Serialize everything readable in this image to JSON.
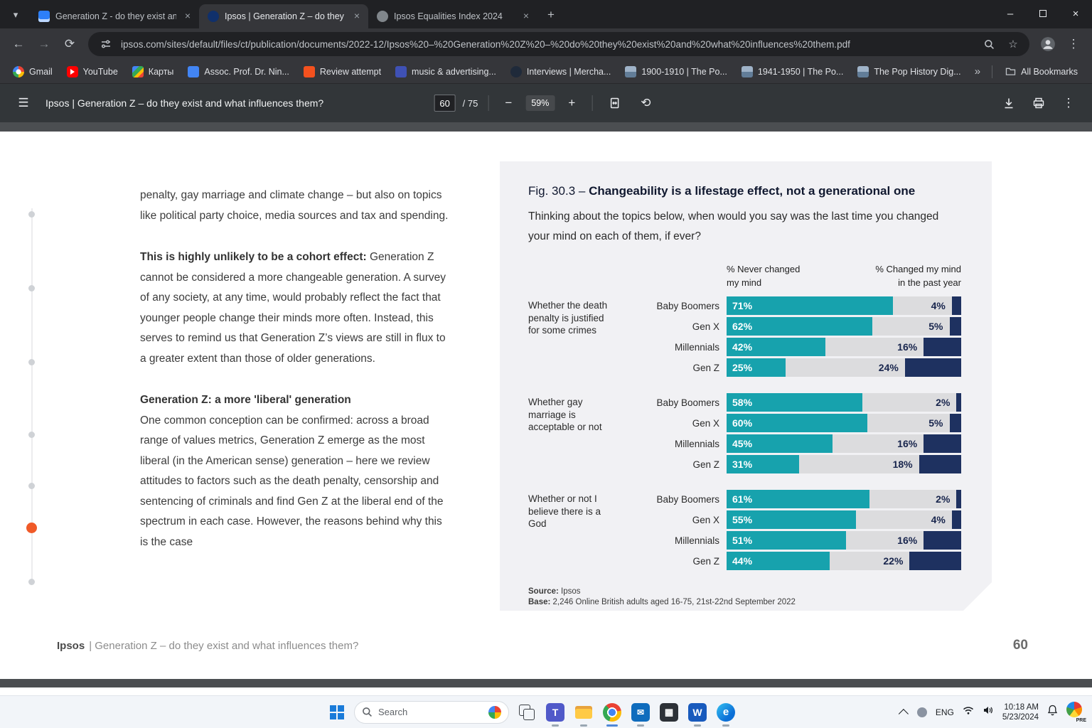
{
  "browser": {
    "tabs": [
      {
        "title": "Generation Z - do they exist an...",
        "icon": "doc-blue",
        "active": false
      },
      {
        "title": "Ipsos | Generation Z – do they e...",
        "icon": "ipsos",
        "active": true
      },
      {
        "title": "Ipsos Equalities Index 2024",
        "icon": "gray-circle",
        "active": false
      }
    ],
    "url": "ipsos.com/sites/default/files/ct/publication/documents/2022-12/Ipsos%20–%20Generation%20Z%20–%20do%20they%20exist%20and%20what%20influences%20them.pdf",
    "bookmarks": [
      {
        "label": "Gmail",
        "icon": "gmail"
      },
      {
        "label": "YouTube",
        "icon": "youtube"
      },
      {
        "label": "Карты",
        "icon": "maps"
      },
      {
        "label": "Assoc. Prof. Dr. Nin...",
        "icon": "doc-blue"
      },
      {
        "label": "Review attempt",
        "icon": "orange"
      },
      {
        "label": "music & advertising...",
        "icon": "music"
      },
      {
        "label": "Interviews | Mercha...",
        "icon": "circle-dark"
      },
      {
        "label": "1900-1910 | The Po...",
        "icon": "photo"
      },
      {
        "label": "1941-1950 | The Po...",
        "icon": "photo"
      },
      {
        "label": "The Pop History Dig...",
        "icon": "photo"
      }
    ],
    "bookmarks_overflow": "»",
    "all_bookmarks": "All Bookmarks"
  },
  "icons": {
    "tab_search": "▾",
    "new_tab": "+",
    "minimize": "–",
    "close": "×",
    "back": "←",
    "forward": "→",
    "reload": "⟳",
    "star": "☆",
    "kebab": "⋮",
    "hamburger": "☰",
    "zoom_out": "−",
    "zoom_in": "+",
    "rotate": "⟲"
  },
  "pdf_toolbar": {
    "title": "Ipsos | Generation Z – do they exist and what influences them?",
    "page_current": "60",
    "page_total": "/ 75",
    "zoom": "59%"
  },
  "doc": {
    "p1": "penalty, gay marriage and climate change – but also on topics like political party choice, media sources and tax and spending.",
    "h2": "This is highly unlikely to be a cohort effect:",
    "p2": " Generation Z cannot be considered a more changeable generation. A survey of any society, at any time, would probably reflect the fact that younger people change their minds more often. Instead, this serves to remind us that Generation Z’s views are still in flux to a greater extent than those of older generations.",
    "h3": "Generation Z: a more 'liberal' generation",
    "p3": "One common conception can be confirmed: across a broad range of values metrics, Generation Z emerge as the most liberal (in the American sense) generation – here we review attitudes to factors such as the death penalty, censorship and sentencing of criminals and find Gen Z at the liberal end of the spectrum in each case. However, the reasons behind why this is the case"
  },
  "chart_data": {
    "type": "bar",
    "title_prefix": "Fig. 30.3 – ",
    "title_bold": "Changeability is a lifestage effect, not a generational one",
    "subtitle": "Thinking about the topics below, when would you say was the last time you changed your mind on each of them, if ever?",
    "headers": {
      "left1": "% Never changed",
      "left2": "my mind",
      "right1": "% Changed my mind",
      "right2": "in the past year"
    },
    "xlim": [
      0,
      100
    ],
    "colors": {
      "never": "#17a2ad",
      "changed": "#1e3160",
      "track": "#dcdcde",
      "panel": "#f1f1f4"
    },
    "groups": [
      {
        "topic": "Whether the death penalty is justified for some crimes",
        "rows": [
          {
            "gen": "Baby Boomers",
            "never": 71,
            "changed": 4
          },
          {
            "gen": "Gen X",
            "never": 62,
            "changed": 5
          },
          {
            "gen": "Millennials",
            "never": 42,
            "changed": 16
          },
          {
            "gen": "Gen Z",
            "never": 25,
            "changed": 24
          }
        ]
      },
      {
        "topic": "Whether gay marriage is acceptable or not",
        "rows": [
          {
            "gen": "Baby Boomers",
            "never": 58,
            "changed": 2
          },
          {
            "gen": "Gen X",
            "never": 60,
            "changed": 5
          },
          {
            "gen": "Millennials",
            "never": 45,
            "changed": 16
          },
          {
            "gen": "Gen Z",
            "never": 31,
            "changed": 18
          }
        ]
      },
      {
        "topic": "Whether or not I believe there is a God",
        "rows": [
          {
            "gen": "Baby Boomers",
            "never": 61,
            "changed": 2
          },
          {
            "gen": "Gen X",
            "never": 55,
            "changed": 4
          },
          {
            "gen": "Millennials",
            "never": 51,
            "changed": 16
          },
          {
            "gen": "Gen Z",
            "never": 44,
            "changed": 22
          }
        ]
      }
    ],
    "source_label": "Source:",
    "source": "Ipsos",
    "base_label": "Base:",
    "base": "2,246 Online British adults aged 16-75, 21st-22nd September 2022"
  },
  "page_footer": {
    "brand": "Ipsos",
    "title": "| Generation Z – do they exist and what influences them?",
    "page_number": "60"
  },
  "taskbar": {
    "search_placeholder": "Search",
    "apps": [
      "task-view",
      "teams",
      "file-explorer",
      "chrome",
      "outlook",
      "store",
      "word",
      "edge"
    ],
    "app_glyphs": {
      "teams": "T",
      "outlook": "✉",
      "store": "▦",
      "word": "W",
      "edge": "e"
    },
    "running_apps": [
      "teams",
      "file-explorer",
      "chrome",
      "outlook",
      "word",
      "edge"
    ],
    "language": "ENG",
    "time": "10:18 AM",
    "date": "5/23/2024",
    "badge": "PRE"
  }
}
